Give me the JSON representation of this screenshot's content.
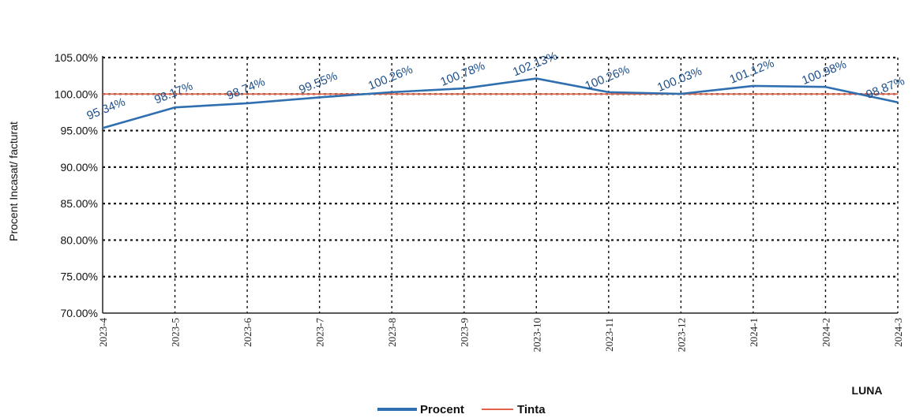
{
  "chart_data": {
    "type": "line",
    "title": "",
    "ylabel": "Procent Incasat/ facturat",
    "xlabel": "LUNA",
    "ylim": [
      70,
      105
    ],
    "y_ticks": [
      "70.00%",
      "75.00%",
      "80.00%",
      "85.00%",
      "90.00%",
      "95.00%",
      "100.00%",
      "105.00%"
    ],
    "y_tick_values": [
      70,
      75,
      80,
      85,
      90,
      95,
      100,
      105
    ],
    "categories": [
      "2023-4",
      "2023-5",
      "2023-6",
      "2023-7",
      "2023-8",
      "2023-9",
      "2023-10",
      "2023-11",
      "2023-12",
      "2024-1",
      "2024-2",
      "2024-3"
    ],
    "grid": true,
    "legend_position": "bottom",
    "series": [
      {
        "name": "Procent",
        "color": "#2f6fb0",
        "values": [
          95.34,
          98.17,
          98.74,
          99.55,
          100.26,
          100.78,
          102.13,
          100.26,
          100.03,
          101.12,
          100.98,
          98.87
        ],
        "labels": [
          "95.34%",
          "98.17%",
          "98.74%",
          "99.55%",
          "100.26%",
          "100.78%",
          "102.13%",
          "100.26%",
          "100.03%",
          "101.12%",
          "100.98%",
          "98.87%"
        ]
      },
      {
        "name": "Tinta",
        "color": "#e0634a",
        "values": [
          100,
          100,
          100,
          100,
          100,
          100,
          100,
          100,
          100,
          100,
          100,
          100
        ]
      }
    ]
  }
}
